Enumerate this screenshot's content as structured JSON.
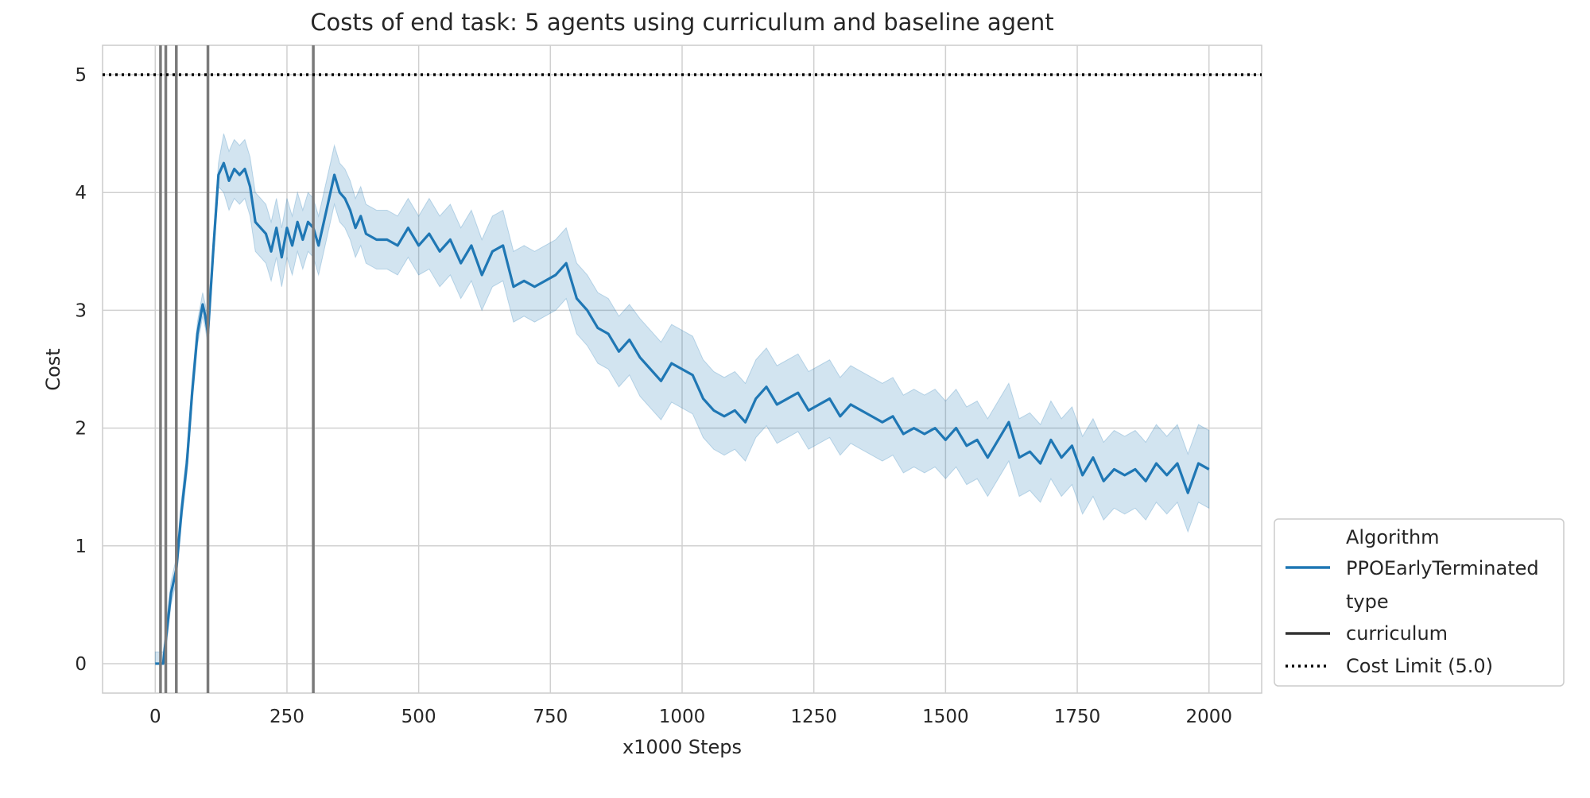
{
  "chart_data": {
    "type": "line",
    "title": "Costs of end task: 5 agents using curriculum and baseline agent",
    "xlabel": "x1000 Steps",
    "ylabel": "Cost",
    "xlim": [
      -100,
      2100
    ],
    "ylim": [
      -0.25,
      5.25
    ],
    "xticks": [
      0,
      250,
      500,
      750,
      1000,
      1250,
      1500,
      1750,
      2000
    ],
    "yticks": [
      0,
      1,
      2,
      3,
      4,
      5
    ],
    "grid": true,
    "legend_position": "bottom-right, outside plot",
    "legend": {
      "hue_title": "Algorithm",
      "style_title": "type",
      "entries": [
        {
          "label": "PPOEarlyTerminated",
          "style": "solid",
          "color": "#1f77b4"
        },
        {
          "label": "curriculum",
          "style": "solid",
          "color": "#333333"
        },
        {
          "label": "Cost Limit (5.0)",
          "style": "dotted",
          "color": "#000000"
        }
      ]
    },
    "reference_line": {
      "label": "Cost Limit (5.0)",
      "y": 5.0,
      "style": "dotted",
      "color": "#000000"
    },
    "vertical_lines": [
      10,
      20,
      40,
      100,
      300
    ],
    "series": [
      {
        "name": "PPOEarlyTerminated",
        "color": "#1f77b4",
        "x": [
          0,
          10,
          15,
          20,
          25,
          30,
          40,
          50,
          60,
          70,
          80,
          90,
          95,
          100,
          110,
          120,
          130,
          140,
          150,
          160,
          170,
          180,
          190,
          200,
          210,
          220,
          230,
          240,
          250,
          260,
          270,
          280,
          290,
          300,
          310,
          320,
          330,
          340,
          350,
          360,
          370,
          380,
          390,
          400,
          420,
          440,
          460,
          480,
          500,
          520,
          540,
          560,
          580,
          600,
          620,
          640,
          660,
          680,
          700,
          720,
          740,
          760,
          780,
          800,
          820,
          840,
          860,
          880,
          900,
          920,
          940,
          960,
          980,
          1000,
          1020,
          1040,
          1060,
          1080,
          1100,
          1120,
          1140,
          1160,
          1180,
          1200,
          1220,
          1240,
          1260,
          1280,
          1300,
          1320,
          1340,
          1360,
          1380,
          1400,
          1420,
          1440,
          1460,
          1480,
          1500,
          1520,
          1540,
          1560,
          1580,
          1600,
          1620,
          1640,
          1660,
          1680,
          1700,
          1720,
          1740,
          1760,
          1780,
          1800,
          1820,
          1840,
          1860,
          1880,
          1900,
          1920,
          1940,
          1960,
          1980,
          2000
        ],
        "y": [
          0,
          0,
          0,
          0.2,
          0.4,
          0.6,
          0.8,
          1.3,
          1.7,
          2.3,
          2.8,
          3.05,
          2.95,
          2.8,
          3.5,
          4.15,
          4.25,
          4.1,
          4.2,
          4.15,
          4.2,
          4.05,
          3.75,
          3.7,
          3.65,
          3.5,
          3.7,
          3.45,
          3.7,
          3.55,
          3.75,
          3.6,
          3.75,
          3.7,
          3.55,
          3.75,
          3.95,
          4.15,
          4.0,
          3.95,
          3.85,
          3.7,
          3.8,
          3.65,
          3.6,
          3.6,
          3.55,
          3.7,
          3.55,
          3.65,
          3.5,
          3.6,
          3.4,
          3.55,
          3.3,
          3.5,
          3.55,
          3.2,
          3.25,
          3.2,
          3.25,
          3.3,
          3.4,
          3.1,
          3.0,
          2.85,
          2.8,
          2.65,
          2.75,
          2.6,
          2.5,
          2.4,
          2.55,
          2.5,
          2.45,
          2.25,
          2.15,
          2.1,
          2.15,
          2.05,
          2.25,
          2.35,
          2.2,
          2.25,
          2.3,
          2.15,
          2.2,
          2.25,
          2.1,
          2.2,
          2.15,
          2.1,
          2.05,
          2.1,
          1.95,
          2.0,
          1.95,
          2.0,
          1.9,
          2.0,
          1.85,
          1.9,
          1.75,
          1.9,
          2.05,
          1.75,
          1.8,
          1.7,
          1.9,
          1.75,
          1.85,
          1.6,
          1.75,
          1.55,
          1.65,
          1.6,
          1.65,
          1.55,
          1.7,
          1.6,
          1.7,
          1.45,
          1.7,
          1.65
        ]
      }
    ],
    "band_halfwidth": [
      {
        "from": 0,
        "to": 120,
        "value": 0.1
      },
      {
        "from": 120,
        "to": 500,
        "value": 0.25
      },
      {
        "from": 500,
        "to": 900,
        "value": 0.3
      },
      {
        "from": 900,
        "to": 2000,
        "value": 0.33
      }
    ]
  }
}
